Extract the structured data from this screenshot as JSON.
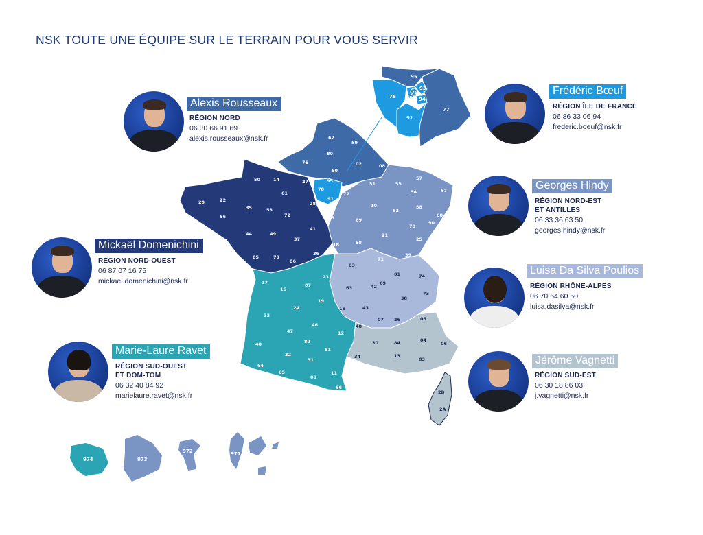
{
  "title": "NSK TOUTE UNE ÉQUIPE SUR LE TERRAIN POUR VOUS SERVIR",
  "colors": {
    "nord": "#3f6aa8",
    "nord_ouest": "#243a78",
    "ile_de_france": "#1e9be0",
    "nord_est": "#7a94c4",
    "rhone_alpes": "#a9b9dc",
    "sud_ouest": "#2ba4b4",
    "sud_est": "#b4c4cf"
  },
  "contacts": [
    {
      "id": "alexis",
      "name": "Alexis Rousseaux",
      "region": "RÉGION NORD",
      "region2": "",
      "phone": "06 30 66 91 69",
      "email": "alexis.rousseaux@nsk.fr",
      "name_bg": "#3f6aa8"
    },
    {
      "id": "frederic",
      "name": "Frédéric Bœuf",
      "region": "RÉGION ÎLE DE FRANCE",
      "region2": "",
      "phone": "06 86 33 06 94",
      "email": "frederic.boeuf@nsk.fr",
      "name_bg": "#1e9be0"
    },
    {
      "id": "georges",
      "name": "Georges Hindy",
      "region": "RÉGION NORD-EST",
      "region2": "ET ANTILLES",
      "phone": "06 33 36 63 50",
      "email": "georges.hindy@nsk.fr",
      "name_bg": "#7a94c4"
    },
    {
      "id": "mickael",
      "name": "Mickaël Domenichini",
      "region": "RÉGION NORD-OUEST",
      "region2": "",
      "phone": "06 87 07 16 75",
      "email": "mickael.domenichini@nsk.fr",
      "name_bg": "#243a78"
    },
    {
      "id": "luisa",
      "name": "Luisa Da Silva Poulios",
      "region": "RÉGION RHÔNE-ALPES",
      "region2": "",
      "phone": "06 70 64 60 50",
      "email": "luisa.dasilva@nsk.fr",
      "name_bg": "#a9b9dc"
    },
    {
      "id": "marie",
      "name": "Marie-Laure Ravet",
      "region": "RÉGION SUD-OUEST",
      "region2": "ET DOM-TOM",
      "phone": "06 32 40 84 92",
      "email": "marielaure.ravet@nsk.fr",
      "name_bg": "#2ba4b4"
    },
    {
      "id": "jerome",
      "name": "Jérôme Vagnetti",
      "region": "RÉGION SUD-EST",
      "region2": "",
      "phone": "06 30 18 86 03",
      "email": "j.vagnetti@nsk.fr",
      "name_bg": "#b4c4cf"
    }
  ],
  "departments": {
    "nord": [
      "62",
      "59",
      "80",
      "02",
      "08",
      "76",
      "27",
      "60"
    ],
    "nord_ouest": [
      "50",
      "14",
      "61",
      "29",
      "22",
      "56",
      "35",
      "53",
      "72",
      "44",
      "49",
      "37",
      "41",
      "85",
      "79",
      "86",
      "36",
      "28",
      "45",
      "18"
    ],
    "ile_de_france": [
      "78",
      "95",
      "91",
      "77"
    ],
    "nord_est": [
      "51",
      "55",
      "57",
      "67",
      "54",
      "88",
      "68",
      "10",
      "52",
      "89",
      "58",
      "21",
      "70",
      "90",
      "25",
      "71",
      "39"
    ],
    "rhone_alpes": [
      "03",
      "63",
      "42",
      "69",
      "01",
      "74",
      "73",
      "38",
      "15",
      "43",
      "07",
      "26"
    ],
    "sud_ouest": [
      "17",
      "16",
      "87",
      "23",
      "19",
      "24",
      "33",
      "47",
      "46",
      "12",
      "40",
      "82",
      "81",
      "64",
      "32",
      "31",
      "65",
      "09",
      "11",
      "66"
    ],
    "sud_est": [
      "48",
      "30",
      "34",
      "84",
      "13",
      "05",
      "04",
      "06",
      "83",
      "2B",
      "2A"
    ],
    "overlay": [
      "95",
      "75",
      "93",
      "92",
      "94",
      "78",
      "91",
      "77"
    ],
    "dom_tom": [
      "974",
      "973",
      "972",
      "971"
    ]
  }
}
